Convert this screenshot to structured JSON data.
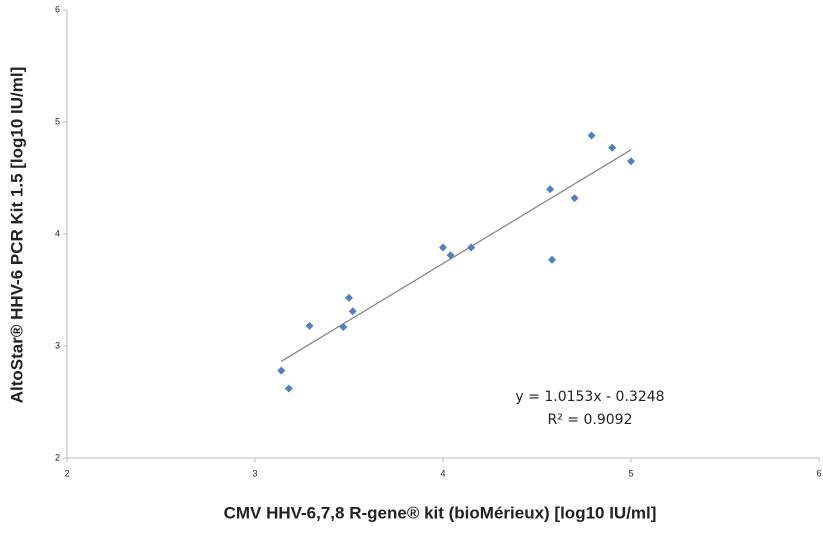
{
  "chart_data": {
    "type": "scatter",
    "x_label": "CMV HHV-6,7,8 R-gene® kit (bioMérieux) [log10 IU/ml]",
    "y_label": "AltoStar® HHV-6 PCR Kit 1.5 [log10 IU/ml]",
    "x": [
      3.14,
      3.18,
      3.29,
      3.47,
      3.5,
      3.52,
      4.0,
      4.04,
      4.15,
      4.57,
      4.58,
      4.7,
      4.79,
      4.9,
      5.0
    ],
    "values": [
      2.78,
      2.62,
      3.18,
      3.17,
      3.43,
      3.31,
      3.88,
      3.81,
      3.88,
      4.4,
      3.77,
      4.32,
      4.88,
      4.77,
      4.65
    ],
    "color": "#4f81bd",
    "xlim": [
      2,
      6
    ],
    "ylim": [
      2,
      6
    ],
    "xticks": [
      2,
      3,
      4,
      5,
      6
    ],
    "yticks": [
      2,
      3,
      4,
      5,
      6
    ],
    "trendline": {
      "slope": 1.0153,
      "intercept": -0.3248,
      "color": "#808080",
      "equation": "y = 1.0153x - 0.3248",
      "r_squared": "R² = 0.9092"
    }
  }
}
